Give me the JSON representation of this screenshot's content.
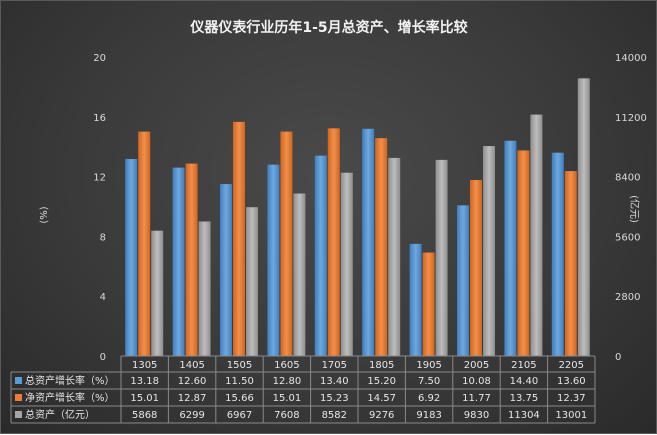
{
  "chart_data": {
    "type": "bar",
    "title": "仪器仪表行业历年1-5月总资产、增长率比较",
    "ylabel_left": "(%)",
    "ylabel_right": "(亿元)",
    "left_ticks": [
      "0",
      "4",
      "8",
      "12",
      "16",
      "20"
    ],
    "right_ticks": [
      "0",
      "2800",
      "5600",
      "8400",
      "11200",
      "14000"
    ],
    "ylim_left": [
      0,
      20
    ],
    "ylim_right": [
      0,
      14000
    ],
    "categories": [
      "1305",
      "1405",
      "1505",
      "1605",
      "1705",
      "1805",
      "1905",
      "2005",
      "2105",
      "2205"
    ],
    "series": [
      {
        "name": "总资产增长率（%）",
        "axis": "left",
        "color": "#5b9bd5",
        "values": [
          13.18,
          12.6,
          11.5,
          12.8,
          13.4,
          15.2,
          7.5,
          10.08,
          14.4,
          13.6
        ],
        "labels": [
          "13.18",
          "12.60",
          "11.50",
          "12.80",
          "13.40",
          "15.20",
          "7.50",
          "10.08",
          "14.40",
          "13.60"
        ]
      },
      {
        "name": "净资产增长率（%）",
        "axis": "left",
        "color": "#ed7d31",
        "values": [
          15.01,
          12.87,
          15.66,
          15.01,
          15.23,
          14.57,
          6.92,
          11.77,
          13.75,
          12.37
        ],
        "labels": [
          "15.01",
          "12.87",
          "15.66",
          "15.01",
          "15.23",
          "14.57",
          "6.92",
          "11.77",
          "13.75",
          "12.37"
        ]
      },
      {
        "name": "总资产（亿元）",
        "axis": "right",
        "color": "#a5a5a5",
        "values": [
          5868,
          6299,
          6967,
          7608,
          8582,
          9276,
          9183,
          9830,
          11304,
          13001
        ],
        "labels": [
          "5868",
          "6299",
          "6967",
          "7608",
          "8582",
          "9276",
          "9183",
          "9830",
          "11304",
          "13001"
        ]
      }
    ],
    "grid": false,
    "legend": "table-below"
  }
}
